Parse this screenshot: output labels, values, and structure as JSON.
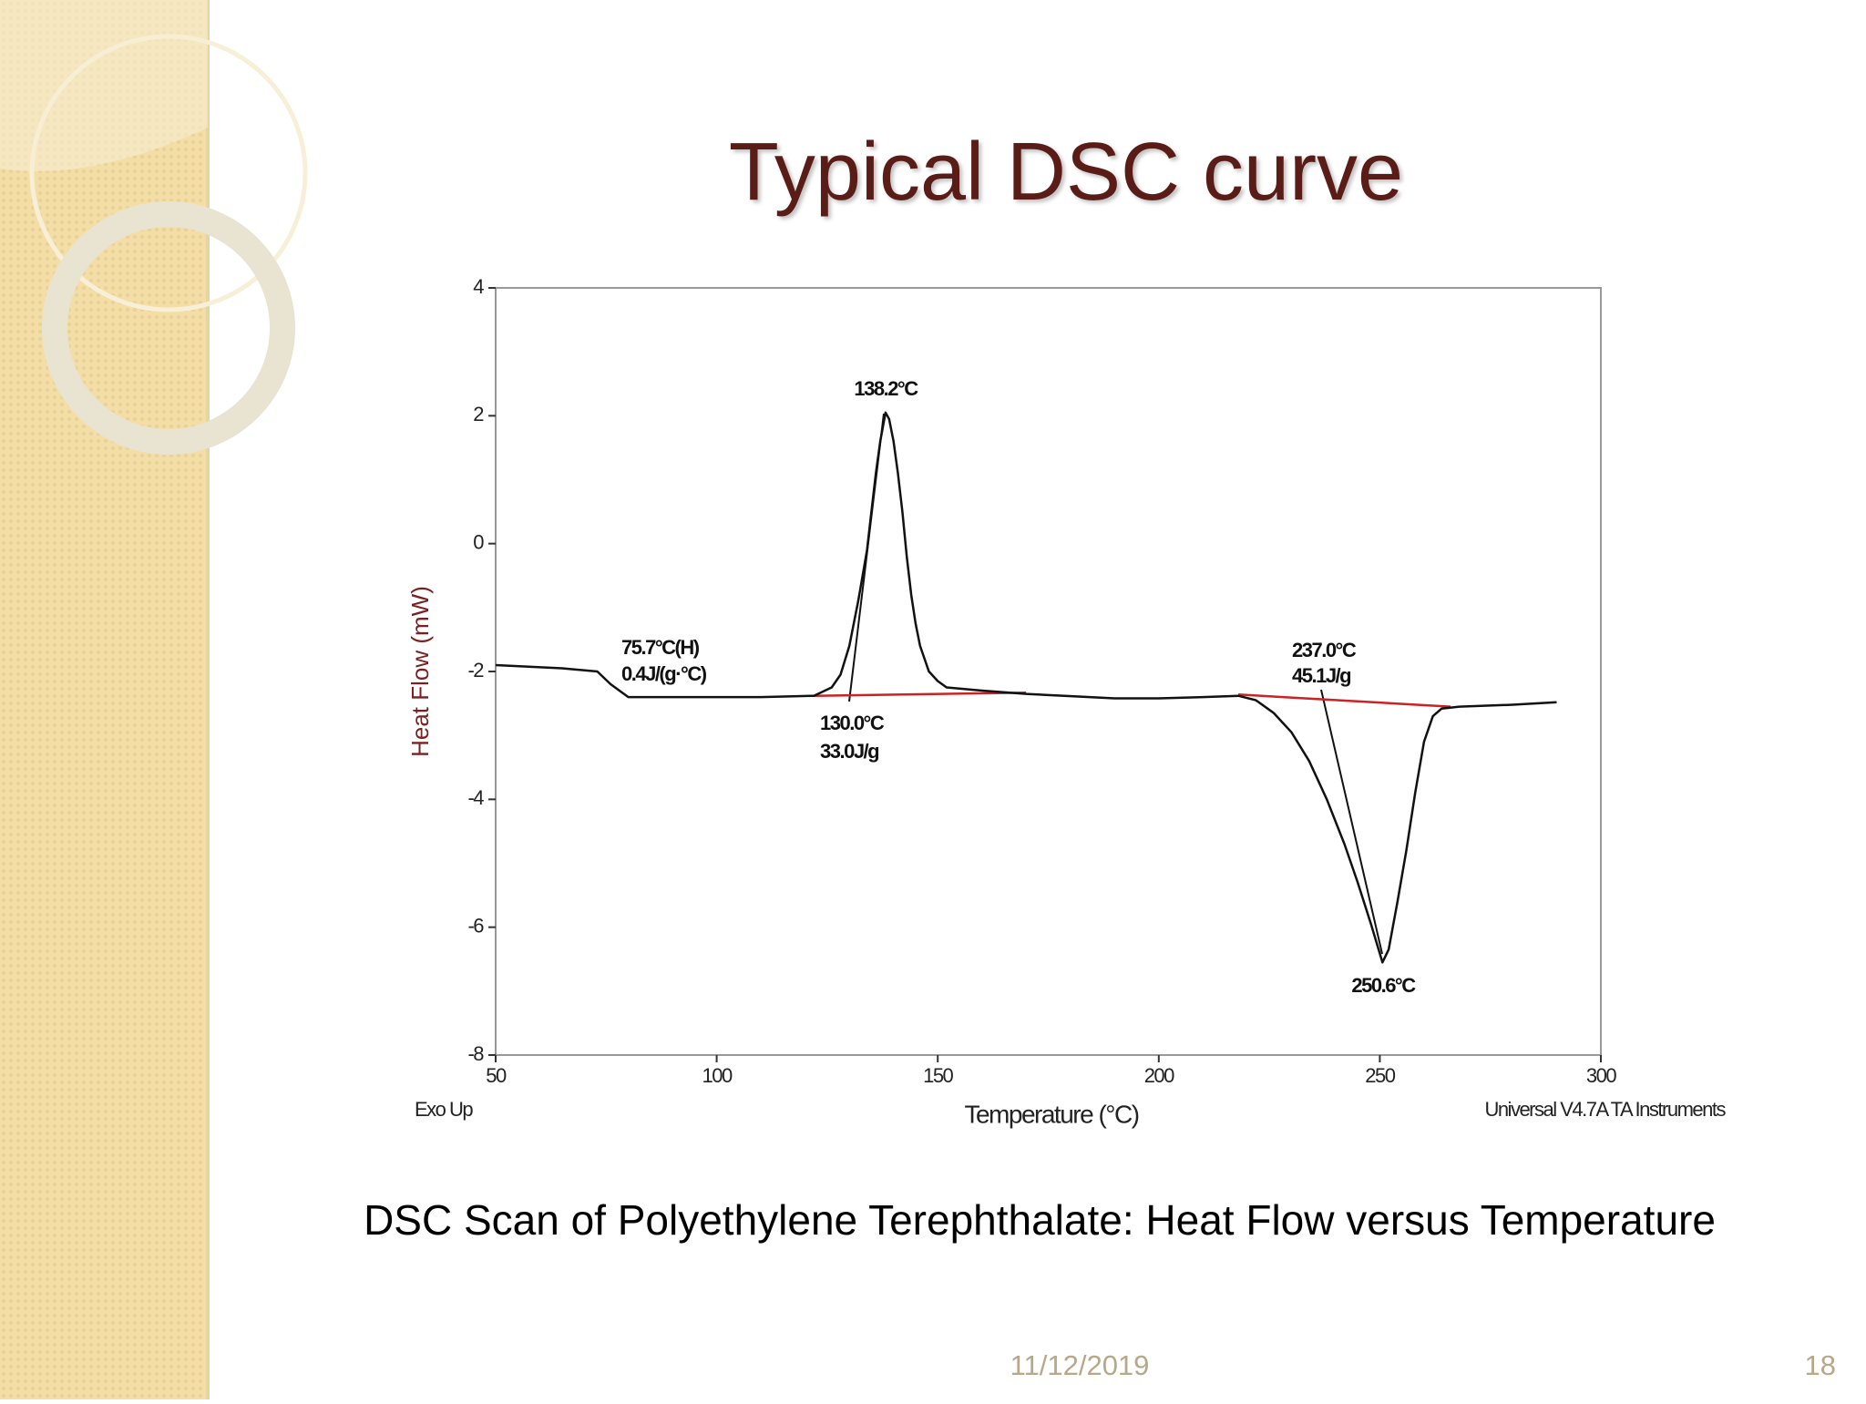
{
  "slide": {
    "title": "Typical DSC curve",
    "caption": "DSC Scan of Polyethylene Terephthalate: Heat Flow versus Temperature",
    "date": "11/12/2019",
    "page": "18"
  },
  "chart_data": {
    "type": "line",
    "xlabel": "Temperature (°C)",
    "ylabel": "Heat Flow (mW)",
    "corner_left": "Exo Up",
    "corner_right": "Universal V4.7A TA Instruments",
    "xlim": [
      50,
      300
    ],
    "xticks": [
      50,
      100,
      150,
      200,
      250,
      300
    ],
    "ylim": [
      -8,
      4
    ],
    "yticks": [
      -8,
      -6,
      -4,
      -2,
      0,
      2,
      4
    ],
    "series": [
      {
        "color": "#111111",
        "x": [
          50,
          65,
          73,
          76,
          80,
          90,
          110,
          122,
          126,
          128,
          130,
          132,
          134,
          135,
          136,
          137,
          138.2,
          139,
          140,
          141,
          142,
          143,
          144,
          145,
          146,
          148,
          150,
          152,
          160,
          170,
          190,
          200,
          210,
          218,
          222,
          226,
          230,
          234,
          238,
          242,
          245,
          248,
          250.6,
          252,
          254,
          256,
          258,
          260,
          262,
          264,
          268,
          280,
          290
        ],
        "values": [
          -1.9,
          -1.95,
          -2.0,
          -2.2,
          -2.4,
          -2.4,
          -2.4,
          -2.38,
          -2.25,
          -2.05,
          -1.6,
          -0.9,
          -0.1,
          0.5,
          1.1,
          1.6,
          2.05,
          1.95,
          1.6,
          1.1,
          0.5,
          -0.2,
          -0.8,
          -1.25,
          -1.6,
          -2.0,
          -2.15,
          -2.25,
          -2.3,
          -2.35,
          -2.42,
          -2.42,
          -2.4,
          -2.38,
          -2.45,
          -2.65,
          -2.95,
          -3.4,
          -4.0,
          -4.7,
          -5.3,
          -5.95,
          -6.55,
          -6.35,
          -5.6,
          -4.8,
          -3.9,
          -3.1,
          -2.7,
          -2.58,
          -2.55,
          -2.52,
          -2.48
        ]
      },
      {
        "color": "#cc2222",
        "x": [
          122,
          170,
          194,
          218,
          266
        ],
        "values": [
          -2.38,
          -2.33,
          null,
          -2.36,
          -2.55
        ]
      }
    ],
    "annotations": [
      "138.2°C",
      "75.7°C(H)",
      "0.4J/(g·°C)",
      "130.0°C",
      "33.0J/g",
      "237.0°C",
      "45.1J/g",
      "250.6°C"
    ]
  }
}
